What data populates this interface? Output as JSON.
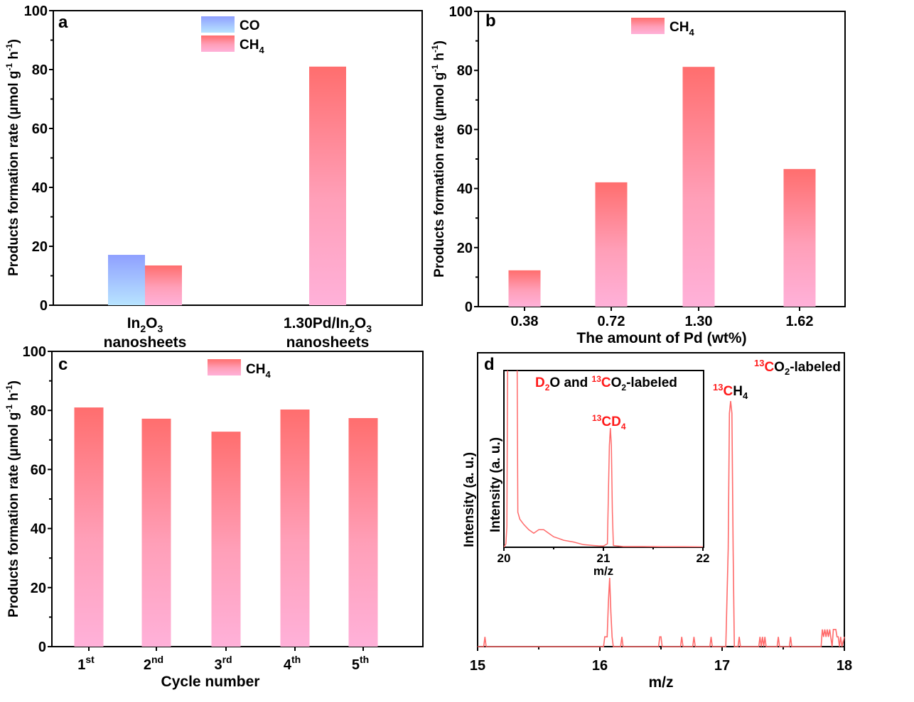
{
  "chart_data": [
    {
      "panel": "a",
      "type": "bar",
      "categories": [
        [
          "In2O3",
          "nanosheets"
        ],
        [
          "1.30Pd/In2O3",
          "nanosheets"
        ]
      ],
      "series": [
        {
          "name": "CO",
          "values": [
            17.1,
            0
          ]
        },
        {
          "name": "CH4",
          "values": [
            13.5,
            81.0
          ]
        }
      ],
      "xlabel": "",
      "ylabel": "Products formation rate (μmol g⁻¹ h⁻¹)",
      "ylim": [
        0,
        100
      ],
      "yticks": [
        0,
        20,
        40,
        60,
        80,
        100
      ],
      "legend": "top-center",
      "legend_entries": [
        "CO",
        "CH4"
      ]
    },
    {
      "panel": "b",
      "type": "bar",
      "categories": [
        "0.38",
        "0.72",
        "1.30",
        "1.62"
      ],
      "series": [
        {
          "name": "CH4",
          "values": [
            12.3,
            42.1,
            81.2,
            46.6
          ]
        }
      ],
      "xlabel": "The amount of Pd (wt%)",
      "ylabel": "Products formation rate (μmol g⁻¹ h⁻¹)",
      "ylim": [
        0,
        100
      ],
      "yticks": [
        0,
        20,
        40,
        60,
        80,
        100
      ],
      "legend": "top-center",
      "legend_entries": [
        "CH4"
      ]
    },
    {
      "panel": "c",
      "type": "bar",
      "categories": [
        [
          "1",
          "st"
        ],
        [
          "2",
          "nd"
        ],
        [
          "3",
          "rd"
        ],
        [
          "4",
          "th"
        ],
        [
          "5",
          "th"
        ]
      ],
      "series": [
        {
          "name": "CH4",
          "values": [
            81.0,
            77.2,
            72.8,
            80.3,
            77.4
          ]
        }
      ],
      "xlabel": "Cycle number",
      "ylabel": "Products formation rate (μmol g⁻¹ h⁻¹)",
      "ylim": [
        0,
        100
      ],
      "yticks": [
        0,
        20,
        40,
        60,
        80,
        100
      ],
      "legend": "top-center",
      "legend_entries": [
        "CH4"
      ]
    },
    {
      "panel": "d",
      "type": "line",
      "title": "13CO2-labeled",
      "xlabel": "m/z",
      "ylabel": "Intensity (a. u.)",
      "xlim": [
        15,
        18
      ],
      "xticks": [
        15,
        16,
        17,
        18
      ],
      "ylim": [
        0,
        1
      ],
      "annotations": [
        {
          "text": "13CH4",
          "x": 17.07
        }
      ],
      "series": [
        {
          "name": "MS signal",
          "x": [
            15.0,
            15.05,
            15.06,
            15.07,
            15.08,
            16.0,
            16.03,
            16.04,
            16.05,
            16.06,
            16.07,
            16.08,
            16.09,
            16.1,
            16.11,
            16.17,
            16.18,
            16.19,
            16.48,
            16.49,
            16.5,
            16.51,
            16.66,
            16.67,
            16.68,
            16.76,
            16.77,
            16.78,
            16.9,
            16.91,
            16.92,
            17.03,
            17.05,
            17.06,
            17.07,
            17.08,
            17.09,
            17.1,
            17.13,
            17.14,
            17.15,
            17.3,
            17.31,
            17.32,
            17.33,
            17.34,
            17.35,
            17.36,
            17.45,
            17.46,
            17.47,
            17.55,
            17.56,
            17.57,
            17.81,
            17.82,
            17.83,
            17.84,
            17.85,
            17.86,
            17.87,
            17.88,
            17.9,
            17.91,
            17.92,
            17.93,
            17.94,
            17.95,
            17.96,
            17.97,
            17.98,
            18.0
          ],
          "y": [
            0,
            0,
            0.04,
            0,
            0,
            0,
            0,
            0.04,
            0.04,
            0.04,
            0.18,
            0.28,
            0.14,
            0.04,
            0,
            0,
            0.04,
            0,
            0,
            0.04,
            0.04,
            0,
            0,
            0.04,
            0,
            0,
            0.04,
            0,
            0,
            0.04,
            0,
            0,
            0.4,
            0.95,
            1.0,
            0.95,
            0.4,
            0,
            0,
            0.04,
            0,
            0,
            0.04,
            0,
            0.04,
            0,
            0.04,
            0,
            0,
            0.04,
            0,
            0,
            0.04,
            0,
            0,
            0.07,
            0.04,
            0.07,
            0.04,
            0.07,
            0.04,
            0.07,
            0,
            0.07,
            0.07,
            0.07,
            0.04,
            0.04,
            0,
            0.04,
            0,
            0.04
          ]
        }
      ],
      "inset": {
        "title": "D2O and 13CO2-labeled",
        "xlabel": "m/z",
        "ylabel": "Intensity (a. u.)",
        "xlim": [
          20,
          22
        ],
        "xticks": [
          20,
          21,
          22
        ],
        "ylim": [
          0,
          1
        ],
        "annotations": [
          {
            "text": "13CD4",
            "x": 21.07
          }
        ],
        "series": [
          {
            "name": "MS signal",
            "x": [
              20.0,
              20.02,
              20.03,
              20.04,
              20.06,
              20.08,
              20.1,
              20.12,
              20.13,
              20.14,
              20.16,
              20.2,
              20.25,
              20.3,
              20.35,
              20.4,
              20.45,
              20.5,
              20.55,
              20.6,
              20.7,
              20.8,
              20.9,
              20.95,
              21.0,
              21.04,
              21.05,
              21.06,
              21.07,
              21.08,
              21.09,
              21.1,
              21.2,
              21.4,
              21.6,
              21.8,
              22.0
            ],
            "y": [
              0,
              0.02,
              0.12,
              1.4,
              1.4,
              1.4,
              1.2,
              1.4,
              1.4,
              0.2,
              0.16,
              0.13,
              0.1,
              0.08,
              0.1,
              0.1,
              0.08,
              0.06,
              0.05,
              0.04,
              0.03,
              0.015,
              0.01,
              0.008,
              0.007,
              0.02,
              0.3,
              0.58,
              0.68,
              0.58,
              0.2,
              0.01,
              0.004,
              0.004,
              0.003,
              0.003,
              0.002
            ]
          }
        ]
      }
    }
  ],
  "labels": {
    "panel_a": "a",
    "panel_b": "b",
    "panel_c": "c",
    "panel_d": "d",
    "ylabel_prefix": "Products formation rate (μmol g",
    "ylabel_mid": " h",
    "ylabel_sup": "-1",
    "ylabel_end": ")",
    "legend_co": "CO",
    "legend_ch": "CH",
    "legend_sub4": "4",
    "a_cat1_line1_a": "In",
    "a_cat1_sub_2": "2",
    "a_cat1_O": "O",
    "a_cat1_sub_3": "3",
    "a_cat2_prefix": "1.30Pd/In",
    "cat_line2": "nanosheets",
    "xlabel_b": "The amount of Pd (wt%)",
    "xlabel_c": "Cycle number",
    "xlabel_d": "m/z",
    "ylabel_d": "Intensity (a. u.)",
    "d_title_13": "13",
    "d_title_C": "C",
    "d_title_O": "O",
    "d_title_sub2": "2",
    "d_title_rest": "-labeled",
    "d_peak_13": "13",
    "d_peak_C": "C",
    "d_peak_H": "H",
    "d_peak_4": "4",
    "inset_D": "D",
    "inset_sub2": "2",
    "inset_and": "O and ",
    "inset_13": "13",
    "inset_C": "C",
    "inset_O": "O",
    "inset_sub2b": "2",
    "inset_rest": "-labeled",
    "inset_peak_13": "13",
    "inset_peak_CD": "CD",
    "inset_peak_4": "4",
    "inset_xlabel": "m/z",
    "inset_ylabel": "Intensity (a. u.)"
  },
  "colors": {
    "co_top": "#8fa0ff",
    "co_bottom": "#b8e4ff",
    "ch4_top": "#ff6e6e",
    "ch4_bottom": "#ffb1d9",
    "ms_line": "#ff6a6a",
    "label_red": "#ff1a1a"
  }
}
